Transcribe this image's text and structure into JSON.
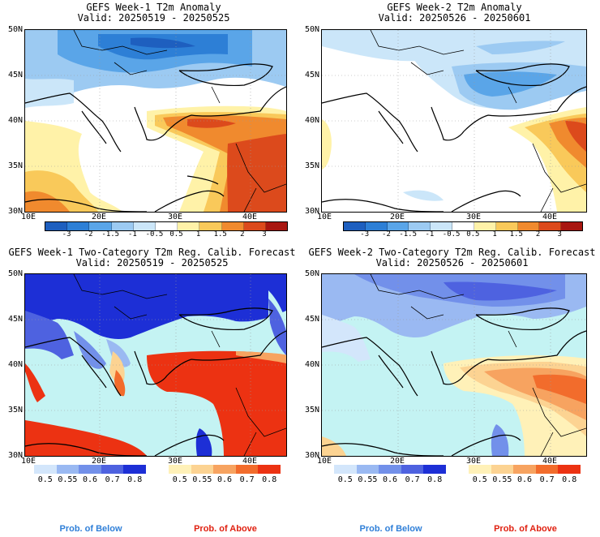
{
  "panels": [
    {
      "id": "p1",
      "title": "GEFS Week-1 T2m Anomaly",
      "valid": "Valid: 20250519 - 20250525",
      "kind": "anomaly"
    },
    {
      "id": "p2",
      "title": "GEFS Week-2 T2m Anomaly",
      "valid": "Valid: 20250526 - 20250601",
      "kind": "anomaly"
    },
    {
      "id": "p3",
      "title": "GEFS Week-1 Two-Category T2m Reg. Calib. Forecast",
      "valid": "Valid: 20250519 - 20250525",
      "kind": "prob"
    },
    {
      "id": "p4",
      "title": "GEFS Week-2 Two-Category T2m Reg. Calib. Forecast",
      "valid": "Valid: 20250526 - 20250601",
      "kind": "prob"
    }
  ],
  "lat_labels": [
    "50N",
    "45N",
    "40N",
    "35N",
    "30N"
  ],
  "lon_labels": [
    "10E",
    "20E",
    "30E",
    "40E"
  ],
  "anomaly_colorbar": {
    "labels": [
      "-3",
      "-2",
      "-1.5",
      "-1",
      "-0.5",
      "0.5",
      "1",
      "1.5",
      "2",
      "3"
    ],
    "colors": [
      "#1e5fbf",
      "#2d7fd6",
      "#5aa5e8",
      "#9ccaf2",
      "#cbe6f9",
      "#ffffff",
      "#fff2a8",
      "#f9c95a",
      "#f08a2e",
      "#dc4a1c",
      "#a81610"
    ]
  },
  "prob_below": {
    "labels": [
      "0.5",
      "0.55",
      "0.6",
      "0.7",
      "0.8"
    ],
    "colors": [
      "#d3e6fb",
      "#9ab9f2",
      "#7290ea",
      "#4e62e0",
      "#1d2fd6"
    ]
  },
  "prob_above": {
    "labels": [
      "0.5",
      "0.55",
      "0.6",
      "0.7",
      "0.8"
    ],
    "colors": [
      "#fff1b8",
      "#fcd392",
      "#f7a360",
      "#f26c2c",
      "#ec3212"
    ]
  },
  "footer": {
    "below": "Prob. of Below",
    "above": "Prob. of Above",
    "below_color": "#2f7fd8",
    "above_color": "#e02010"
  },
  "map_colors": {
    "sea": "#c4f3f3",
    "white": "#ffffff"
  }
}
